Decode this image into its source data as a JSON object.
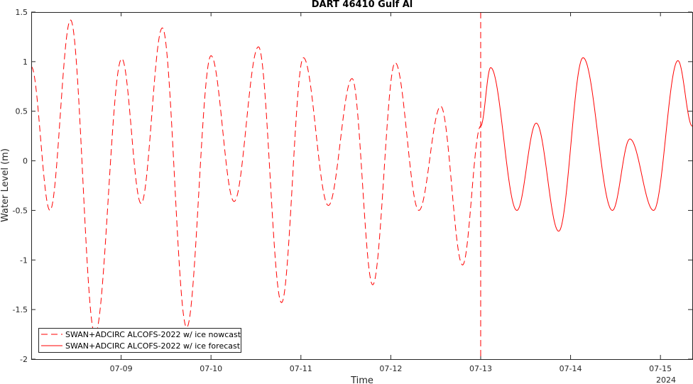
{
  "chart_data": {
    "type": "line",
    "title": "DART 46410 Gulf Al",
    "xlabel": "Time",
    "ylabel": "Water Level (m)",
    "xlim_days": [
      "07-08 00:00",
      "07-15 08:30"
    ],
    "ylim": [
      -2,
      1.5
    ],
    "yticks": [
      -2,
      -1.5,
      -1,
      -0.5,
      0,
      0.5,
      1,
      1.5
    ],
    "ytick_labels": [
      "-2",
      "-1.5",
      "-1",
      "-0.5",
      "0",
      "0.5",
      "1",
      "1.5"
    ],
    "xtick_labels": [
      "07-09",
      "07-10",
      "07-11",
      "07-12",
      "07-13",
      "07-14",
      "07-15"
    ],
    "xtick_day_offsets": [
      1,
      2,
      3,
      4,
      5,
      6,
      7
    ],
    "year_label": "2024",
    "forecast_start": "07-13 00:00",
    "grid": false,
    "legend_position": "bottom-left",
    "line_color": "#ff0000",
    "series": [
      {
        "name": "SWAN+ADCIRC ALCOFS-2022 w/ ice nowcast",
        "style": "dashed",
        "extrema": [
          [
            "07-08 00:00",
            0.95
          ],
          [
            "07-08 05:00",
            -0.5
          ],
          [
            "07-08 10:30",
            1.42
          ],
          [
            "07-08 17:00",
            -1.75
          ],
          [
            "07-09 00:10",
            1.03
          ],
          [
            "07-09 05:20",
            -0.43
          ],
          [
            "07-09 11:00",
            1.34
          ],
          [
            "07-09 17:30",
            -1.68
          ],
          [
            "07-10 00:00",
            1.06
          ],
          [
            "07-10 06:10",
            -0.41
          ],
          [
            "07-10 12:40",
            1.15
          ],
          [
            "07-10 18:50",
            -1.43
          ],
          [
            "07-11 00:40",
            1.04
          ],
          [
            "07-11 07:20",
            -0.45
          ],
          [
            "07-11 13:40",
            0.83
          ],
          [
            "07-11 19:10",
            -1.25
          ],
          [
            "07-12 01:10",
            0.99
          ],
          [
            "07-12 07:30",
            -0.5
          ],
          [
            "07-12 13:20",
            0.55
          ],
          [
            "07-12 19:10",
            -1.05
          ],
          [
            "07-13 00:00",
            0.35
          ]
        ]
      },
      {
        "name": "SWAN+ADCIRC ALCOFS-2022 w/ ice forecast",
        "style": "solid",
        "extrema": [
          [
            "07-13 00:00",
            0.35
          ],
          [
            "07-13 02:40",
            0.94
          ],
          [
            "07-13 09:40",
            -0.5
          ],
          [
            "07-13 14:50",
            0.38
          ],
          [
            "07-13 20:50",
            -0.71
          ],
          [
            "07-14 03:20",
            1.04
          ],
          [
            "07-14 11:10",
            -0.5
          ],
          [
            "07-14 15:50",
            0.22
          ],
          [
            "07-14 22:10",
            -0.5
          ],
          [
            "07-15 04:40",
            1.01
          ],
          [
            "07-15 08:30",
            0.35
          ]
        ]
      }
    ]
  }
}
